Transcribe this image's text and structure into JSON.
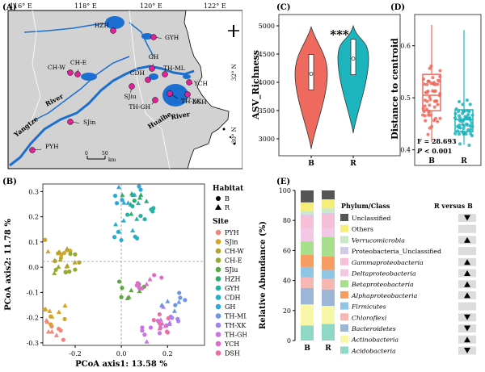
{
  "colors": {
    "B": "#ee6a5e",
    "R": "#1cb5bd",
    "site_colors": [
      "#f0857c",
      "#d8a323",
      "#b3a42a",
      "#94a931",
      "#58aa3e",
      "#2aae6e",
      "#22b3a3",
      "#21b2c9",
      "#2fa7dc",
      "#6d94e6",
      "#a384ed",
      "#c775e5",
      "#e06bcc",
      "#ec6da7"
    ],
    "phylum_colors": [
      "#555555",
      "#f6ee7a",
      "#cbe9c8",
      "#d3cbe7",
      "#f5bfd8",
      "#f2c8e5",
      "#a6e08c",
      "#f79d62",
      "#8fc6e5",
      "#f6b7b3",
      "#9db6d6",
      "#f8f7a8",
      "#8fd8c6"
    ]
  },
  "panel_a": {
    "label": "(A)",
    "lon_ticks": [
      "116° E",
      "118° E",
      "120° E",
      "122° E"
    ],
    "lat_ticks": [
      "32° N",
      "30° N"
    ],
    "sites": [
      {
        "name": "HZH"
      },
      {
        "name": "GYH"
      },
      {
        "name": "CH-W"
      },
      {
        "name": "CH-E"
      },
      {
        "name": "GH"
      },
      {
        "name": "TH-ML"
      },
      {
        "name": "CDH"
      },
      {
        "name": "YCH"
      },
      {
        "name": "SJiu"
      },
      {
        "name": "TH-XK"
      },
      {
        "name": "TH-GH"
      },
      {
        "name": "DSH"
      },
      {
        "name": "SJin"
      },
      {
        "name": "PYH"
      }
    ],
    "river_labels": {
      "river1": "River",
      "yangtze": "Yangtze",
      "huaihe": "Huaihe",
      "river2": "River"
    },
    "scale": {
      "zero": "0",
      "fifty": "50",
      "unit": "km"
    }
  },
  "panel_b": {
    "label": "(B)",
    "xlabel": "PCoA axis1: 13.58 %",
    "ylabel": "PCoA axis2: 11.78 %",
    "x_ticks": [
      "-0.2",
      "0.0",
      "0.2"
    ],
    "y_ticks": [
      "0.3",
      "0.2",
      "0.1",
      "0.0",
      "-0.1",
      "-0.2",
      "-0.3"
    ],
    "legend_habitat_title": "Habitat",
    "habitats": [
      "B",
      "R"
    ],
    "legend_site_title": "Site",
    "sites": [
      "PYH",
      "SJin",
      "CH-W",
      "CH-E",
      "SJiu",
      "HZH",
      "GYH",
      "CDH",
      "GH",
      "TH-ML",
      "TH-XK",
      "TH-GH",
      "YCH",
      "DSH"
    ]
  },
  "chart_data": [
    {
      "type": "violin",
      "label": "(C)",
      "ylabel": "ASV_Richness",
      "categories": [
        "B",
        "R"
      ],
      "ylim": [
        2700,
        5200
      ],
      "y_ticks": [
        3000,
        3500,
        4000,
        4500,
        5000
      ],
      "significance": "***",
      "medians": [
        4150,
        4420
      ]
    },
    {
      "type": "boxplot",
      "label": "(D)",
      "ylabel": "Distance to centroid",
      "categories": [
        "B",
        "R"
      ],
      "ylim": [
        0.37,
        0.66
      ],
      "y_ticks": [
        0.4,
        0.5,
        0.6
      ],
      "stat_F": "F = 28.693",
      "stat_P_prefix": "P",
      "stat_P_rest": " < 0.001",
      "medians": [
        0.505,
        0.458
      ]
    },
    {
      "type": "stacked_bar",
      "label": "(E)",
      "ylabel": "Relative Abundance (%)",
      "categories": [
        "B",
        "R"
      ],
      "y_ticks": [
        0,
        20,
        40,
        60,
        80,
        100
      ],
      "legend_title": "Phylum/Class",
      "compare_title": "R versus B",
      "series": [
        {
          "name": "Unclassified",
          "italic": false,
          "values": [
            8,
            6
          ],
          "trend": "down"
        },
        {
          "name": "Others",
          "italic": false,
          "values": [
            6,
            6
          ],
          "trend": ""
        },
        {
          "name": "Verrucomicrobia",
          "italic": true,
          "values": [
            2,
            3
          ],
          "trend": "up"
        },
        {
          "name": "Proteobacteria_Unclassified",
          "italic": false,
          "values": [
            1,
            1
          ],
          "trend": ""
        },
        {
          "name": "Gammaproteobacteria",
          "italic": true,
          "values": [
            8,
            9
          ],
          "trend": "up"
        },
        {
          "name": "Deltaproteobacteria",
          "italic": true,
          "values": [
            9,
            6
          ],
          "trend": "up"
        },
        {
          "name": "Betaproteobacteria",
          "italic": true,
          "values": [
            9,
            13
          ],
          "trend": "up"
        },
        {
          "name": "Alphaproteobacteria",
          "italic": true,
          "values": [
            8,
            9
          ],
          "trend": "up"
        },
        {
          "name": "Firmicutes",
          "italic": true,
          "values": [
            7,
            6
          ],
          "trend": ""
        },
        {
          "name": "Chloroflexi",
          "italic": true,
          "values": [
            7,
            7
          ],
          "trend": "down"
        },
        {
          "name": "Bacteroidetes",
          "italic": true,
          "values": [
            11,
            11
          ],
          "trend": "down"
        },
        {
          "name": "Actinobacteria",
          "italic": true,
          "values": [
            14,
            12
          ],
          "trend": "up"
        },
        {
          "name": "Acidobacteria",
          "italic": true,
          "values": [
            10,
            11
          ],
          "trend": "down"
        }
      ]
    }
  ]
}
